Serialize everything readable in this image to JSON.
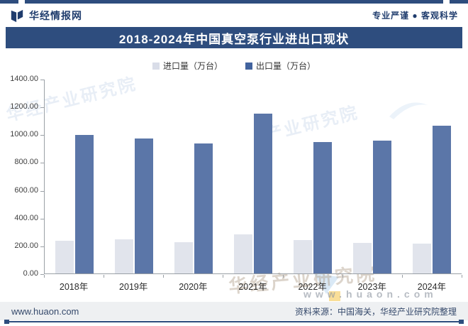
{
  "header": {
    "brand": "华经情报网",
    "tagline": "专业严谨 ● 客观科学"
  },
  "title": "2018-2024年中国真空泵行业进出口现状",
  "chart_data": {
    "type": "bar",
    "title": "2018-2024年中国真空泵行业进出口现状",
    "categories": [
      "2018年",
      "2019年",
      "2020年",
      "2021年",
      "2022年",
      "2023年",
      "2024年"
    ],
    "series": [
      {
        "name": "进口量（万台）",
        "color": "#e1e4ec",
        "values": [
          235,
          245,
          225,
          280,
          240,
          220,
          215
        ]
      },
      {
        "name": "出口量（万台）",
        "color": "#5b76a8",
        "values": [
          1000,
          975,
          940,
          1155,
          950,
          960,
          1065
        ]
      }
    ],
    "legend_swatch_colors": [
      "#d9dde8",
      "#42639e"
    ],
    "xlabel": "",
    "ylabel": "",
    "ylim": [
      0,
      1400
    ],
    "ytick_step": 200,
    "ytick_labels": [
      "1400.00",
      "1200.00",
      "1000.00",
      "800.00",
      "600.00",
      "400.00",
      "200.00",
      "0.00"
    ],
    "grid": false,
    "legend_position": "top"
  },
  "watermarks": {
    "diagonal_1": "华经产业研究院",
    "diagonal_2": "产业研究院",
    "bottom_text": "华经产业研究院",
    "bottom_url": "www.huaon.com"
  },
  "footer": {
    "site": "www.huaon.com",
    "source": "资料来源：中国海关，华经产业研究院整理"
  },
  "colors": {
    "brand_navy": "#2e4d7e",
    "axis": "#9aa0a6",
    "import_bar": "#e1e4ec",
    "export_bar": "#5b76a8"
  }
}
